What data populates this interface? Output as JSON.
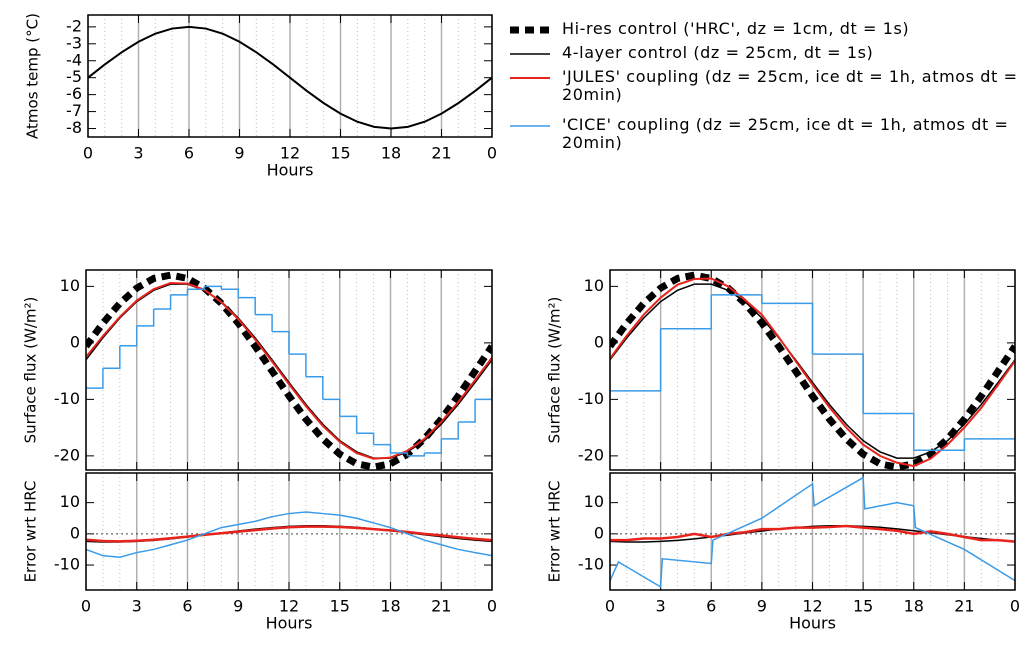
{
  "chart_data": [
    {
      "type": "line",
      "xlabel": "Hours",
      "ylabel": "Atmos temp (°C)",
      "x": [
        0,
        1,
        2,
        3,
        4,
        5,
        6,
        7,
        8,
        9,
        10,
        11,
        12,
        13,
        14,
        15,
        16,
        17,
        18,
        19,
        20,
        21,
        22,
        23,
        24
      ],
      "xlim": [
        0,
        24
      ],
      "xticks": [
        0,
        3,
        6,
        9,
        12,
        15,
        18,
        21,
        {
          "value": 24,
          "label": "0"
        }
      ],
      "ylim": [
        -8.5,
        -1.3
      ],
      "yticks": [
        -2,
        -3,
        -4,
        -5,
        -6,
        -7,
        -8
      ],
      "grid": true,
      "series": [
        {
          "color": "#000000",
          "line_style": "solid",
          "line_width": 2,
          "values": [
            -5,
            -4.22,
            -3.5,
            -2.88,
            -2.4,
            -2.1,
            -2,
            -2.1,
            -2.4,
            -2.88,
            -3.5,
            -4.22,
            -5,
            -5.78,
            -6.5,
            -7.12,
            -7.6,
            -7.9,
            -8,
            -7.9,
            -7.6,
            -7.12,
            -6.5,
            -5.78,
            -5
          ]
        }
      ]
    },
    {
      "type": "line",
      "ylabel": "Surface flux (W/m²)",
      "x": [
        0,
        1,
        2,
        3,
        4,
        5,
        6,
        7,
        8,
        9,
        10,
        11,
        12,
        13,
        14,
        15,
        16,
        17,
        18,
        19,
        20,
        21,
        22,
        23,
        24
      ],
      "xlim": [
        0,
        24
      ],
      "xticks": [
        0,
        3,
        6,
        9,
        12,
        15,
        18,
        21,
        {
          "value": 24,
          "label": "0"
        }
      ],
      "ylim": [
        -22.5,
        12.9
      ],
      "yticks": [
        10,
        0,
        -10,
        -20
      ],
      "grid": true,
      "series": [
        {
          "name": "Hi-res control ('HRC', dz = 1cm, dt = 1s)",
          "color": "#000000",
          "line_style": "dashed",
          "line_width": 7,
          "values": [
            -0.6,
            3.5,
            7.0,
            9.7,
            11.4,
            12,
            11.4,
            9.7,
            7.0,
            3.5,
            -0.6,
            -5,
            -9.4,
            -13.5,
            -17,
            -19.7,
            -21.4,
            -22,
            -21.4,
            -19.7,
            -17,
            -13.5,
            -9.4,
            -5,
            -0.6
          ]
        },
        {
          "name": "4-layer control (dz = 25cm, dt = 1s)",
          "color": "#000000",
          "line_style": "solid",
          "line_width": 1.5,
          "values": [
            -3.0,
            0.9,
            4.4,
            7.3,
            9.3,
            10.4,
            10.4,
            9.3,
            7.3,
            4.4,
            0.9,
            -3.0,
            -7.0,
            -10.9,
            -14.4,
            -17.3,
            -19.3,
            -20.4,
            -20.4,
            -19.3,
            -17.3,
            -14.4,
            -10.9,
            -7.0,
            -3.0
          ]
        },
        {
          "name": "'JULES' coupling (dz = 25cm, ice dt = 1h, atmos dt = 20min)",
          "color": "#e8231c",
          "line_style": "solid",
          "line_width": 2,
          "values": [
            -2.5,
            1.2,
            4.6,
            7.5,
            9.5,
            10.6,
            10.5,
            9.4,
            7.2,
            4.2,
            0.6,
            -3.3,
            -7.3,
            -11.2,
            -14.7,
            -17.5,
            -19.5,
            -20.5,
            -20.3,
            -19.1,
            -17.0,
            -14.0,
            -10.5,
            -6.6,
            -2.6
          ]
        },
        {
          "name": "'CICE' coupling (dz = 25cm, ice dt = 1h, atmos dt = 20min)",
          "color": "#3a9be8",
          "line_style": "steps",
          "line_width": 1.5,
          "values": [
            -8,
            -4.5,
            -0.5,
            3,
            6,
            8.5,
            9.5,
            10,
            9.5,
            8,
            5,
            2,
            -2,
            -6,
            -10,
            -13,
            -16,
            -18,
            -19.5,
            -20,
            -19.5,
            -17,
            -14,
            -10,
            -8
          ]
        }
      ]
    },
    {
      "type": "line",
      "xlabel": "Hours",
      "ylabel": "Error wrt HRC",
      "x": [
        0,
        1,
        2,
        3,
        4,
        5,
        6,
        7,
        8,
        9,
        10,
        11,
        12,
        13,
        14,
        15,
        16,
        17,
        18,
        19,
        20,
        21,
        22,
        23,
        24
      ],
      "xlim": [
        0,
        24
      ],
      "xticks": [
        0,
        3,
        6,
        9,
        12,
        15,
        18,
        21,
        {
          "value": 24,
          "label": "0"
        }
      ],
      "ylim": [
        -18,
        19.5
      ],
      "yticks": [
        10,
        0,
        -10
      ],
      "grid": true,
      "reference_line": 0,
      "series": [
        {
          "color": "#000000",
          "line_style": "solid",
          "line_width": 1.5,
          "values": [
            -2.4,
            -2.6,
            -2.6,
            -2.4,
            -2.1,
            -1.6,
            -1.0,
            -0.4,
            0.3,
            0.9,
            1.5,
            2.0,
            2.4,
            2.6,
            2.6,
            2.4,
            2.1,
            1.6,
            1.0,
            0.4,
            -0.3,
            -0.9,
            -1.5,
            -2.0,
            -2.4
          ]
        },
        {
          "color": "#e8231c",
          "line_style": "solid",
          "line_width": 2.5,
          "values": [
            -1.9,
            -2.3,
            -2.4,
            -2.2,
            -1.9,
            -1.4,
            -0.9,
            -0.3,
            0.2,
            0.7,
            1.2,
            1.7,
            2.1,
            2.3,
            2.3,
            2.2,
            1.9,
            1.5,
            1.1,
            0.6,
            0,
            -0.5,
            -1.1,
            -1.6,
            -2.0
          ]
        },
        {
          "color": "#3a9be8",
          "line_style": "solid",
          "line_width": 1.5,
          "values": [
            -5,
            -7,
            -7.5,
            -6,
            -5,
            -3.5,
            -2,
            0,
            2,
            3,
            4,
            5.5,
            6.5,
            7,
            6.5,
            6,
            5,
            3.5,
            2,
            0,
            -2,
            -3.5,
            -5,
            -6,
            -7
          ]
        }
      ]
    },
    {
      "type": "line",
      "ylabel": "Surface flux (W/m²)",
      "x": [
        0,
        1,
        2,
        3,
        4,
        5,
        6,
        7,
        8,
        9,
        10,
        11,
        12,
        13,
        14,
        15,
        16,
        17,
        18,
        19,
        20,
        21,
        22,
        23,
        24
      ],
      "xlim": [
        0,
        24
      ],
      "xticks": [
        0,
        3,
        6,
        9,
        12,
        15,
        18,
        21,
        {
          "value": 24,
          "label": "0"
        }
      ],
      "ylim": [
        -22.5,
        12.9
      ],
      "yticks": [
        10,
        0,
        -10,
        -20
      ],
      "grid": true,
      "series": [
        {
          "color": "#000000",
          "line_style": "dashed",
          "line_width": 7,
          "values": [
            -0.6,
            3.5,
            7.0,
            9.7,
            11.4,
            12,
            11.4,
            9.7,
            7.0,
            3.5,
            -0.6,
            -5,
            -9.4,
            -13.5,
            -17,
            -19.7,
            -21.4,
            -22,
            -21.4,
            -19.7,
            -17,
            -13.5,
            -9.4,
            -5,
            -0.6
          ]
        },
        {
          "color": "#000000",
          "line_style": "solid",
          "line_width": 1.5,
          "values": [
            -3.0,
            0.9,
            4.4,
            7.3,
            9.3,
            10.4,
            10.4,
            9.3,
            7.3,
            4.4,
            0.9,
            -3.0,
            -7.0,
            -10.9,
            -14.4,
            -17.3,
            -19.3,
            -20.4,
            -20.4,
            -19.3,
            -17.3,
            -14.4,
            -10.9,
            -7.0,
            -3.0
          ]
        },
        {
          "color": "#e8231c",
          "line_style": "solid",
          "line_width": 2,
          "values": [
            -2.8,
            1.3,
            5,
            8,
            10.3,
            11.3,
            11.4,
            10,
            7.6,
            5,
            1,
            -3.2,
            -7.4,
            -11.4,
            -15,
            -18,
            -20,
            -21.2,
            -21.8,
            -20.5,
            -18,
            -15,
            -11.5,
            -7.4,
            -3.2
          ]
        },
        {
          "color": "#3a9be8",
          "line_style": "steps",
          "line_width": 1.5,
          "x": [
            0,
            3,
            6,
            9,
            12,
            15,
            18,
            21,
            24
          ],
          "values": [
            -8.5,
            2.5,
            8.5,
            7,
            -2,
            -12.5,
            -19,
            -17,
            -17
          ]
        }
      ]
    },
    {
      "type": "line",
      "xlabel": "Hours",
      "ylabel": "Error wrt HRC",
      "x": [
        0,
        1,
        2,
        3,
        4,
        5,
        6,
        7,
        8,
        9,
        10,
        11,
        12,
        13,
        14,
        15,
        16,
        17,
        18,
        19,
        20,
        21,
        22,
        23,
        24
      ],
      "xlim": [
        0,
        24
      ],
      "xticks": [
        0,
        3,
        6,
        9,
        12,
        15,
        18,
        21,
        {
          "value": 24,
          "label": "0"
        }
      ],
      "ylim": [
        -18,
        19.5
      ],
      "yticks": [
        10,
        0,
        -10
      ],
      "grid": true,
      "reference_line": 0,
      "series": [
        {
          "color": "#000000",
          "line_style": "solid",
          "line_width": 1.5,
          "values": [
            -2.4,
            -2.6,
            -2.6,
            -2.4,
            -2.1,
            -1.6,
            -1.0,
            -0.4,
            0.3,
            0.9,
            1.5,
            2.0,
            2.4,
            2.6,
            2.6,
            2.4,
            2.1,
            1.6,
            1.0,
            0.4,
            -0.3,
            -0.9,
            -1.5,
            -2.0,
            -2.4
          ]
        },
        {
          "color": "#e8231c",
          "line_style": "solid",
          "line_width": 2.5,
          "values": [
            -2,
            -2,
            -1.5,
            -1.5,
            -1,
            0,
            -1,
            0,
            0.5,
            1.5,
            1.5,
            2,
            2,
            2.2,
            2.5,
            2,
            1.5,
            1,
            0,
            0.8,
            0,
            -1,
            -2,
            -2,
            -2.5
          ]
        },
        {
          "color": "#3a9be8",
          "line_style": "solid",
          "line_width": 1.5,
          "x": [
            0,
            0.5,
            3,
            3.1,
            6,
            6.1,
            9,
            12,
            12.1,
            15,
            15.1,
            17,
            18,
            18.1,
            21,
            24
          ],
          "values": [
            -15,
            -9,
            -17,
            -8,
            -9.5,
            -2,
            5,
            16,
            9,
            18,
            8,
            10,
            9,
            2,
            -5,
            -15
          ]
        }
      ]
    }
  ]
}
